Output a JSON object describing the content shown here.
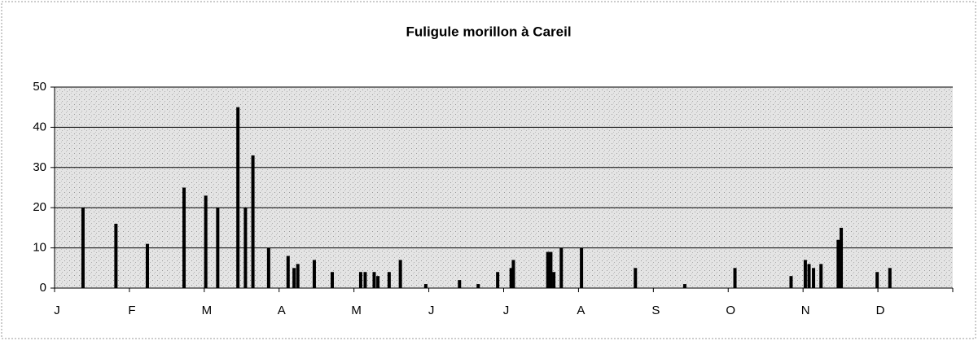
{
  "chart_data": {
    "type": "bar",
    "title": "Fuligule morillon à Careil",
    "x": [
      0.38,
      0.82,
      1.24,
      1.73,
      2.02,
      2.18,
      2.45,
      2.55,
      2.65,
      2.86,
      3.12,
      3.2,
      3.25,
      3.47,
      3.71,
      4.09,
      4.15,
      4.27,
      4.32,
      4.47,
      4.62,
      4.96,
      5.41,
      5.66,
      5.92,
      6.1,
      6.13,
      6.59,
      6.63,
      6.67,
      6.77,
      7.04,
      7.76,
      8.42,
      9.09,
      9.84,
      10.03,
      10.08,
      10.14,
      10.24,
      10.47,
      10.51,
      10.99,
      11.16
    ],
    "values": [
      20,
      16,
      11,
      25,
      23,
      20,
      45,
      20,
      33,
      10,
      8,
      5,
      6,
      7,
      4,
      4,
      4,
      4,
      3,
      4,
      7,
      1,
      2,
      1,
      4,
      5,
      7,
      9,
      9,
      4,
      10,
      10,
      5,
      1,
      5,
      3,
      7,
      6,
      5,
      6,
      12,
      15,
      4,
      5
    ],
    "color": "#000000",
    "xlim": [
      0,
      12
    ],
    "xticks": [
      {
        "value": 0,
        "label": "J"
      },
      {
        "value": 1,
        "label": "F"
      },
      {
        "value": 2,
        "label": "M"
      },
      {
        "value": 3,
        "label": "A"
      },
      {
        "value": 4,
        "label": "M"
      },
      {
        "value": 5,
        "label": "J"
      },
      {
        "value": 6,
        "label": "J"
      },
      {
        "value": 7,
        "label": "A"
      },
      {
        "value": 8,
        "label": "S"
      },
      {
        "value": 9,
        "label": "O"
      },
      {
        "value": 10,
        "label": "N"
      },
      {
        "value": 11,
        "label": "D"
      }
    ],
    "ylim": [
      0,
      50
    ],
    "yticks": [
      0,
      10,
      20,
      30,
      40,
      50
    ],
    "grid": true
  }
}
